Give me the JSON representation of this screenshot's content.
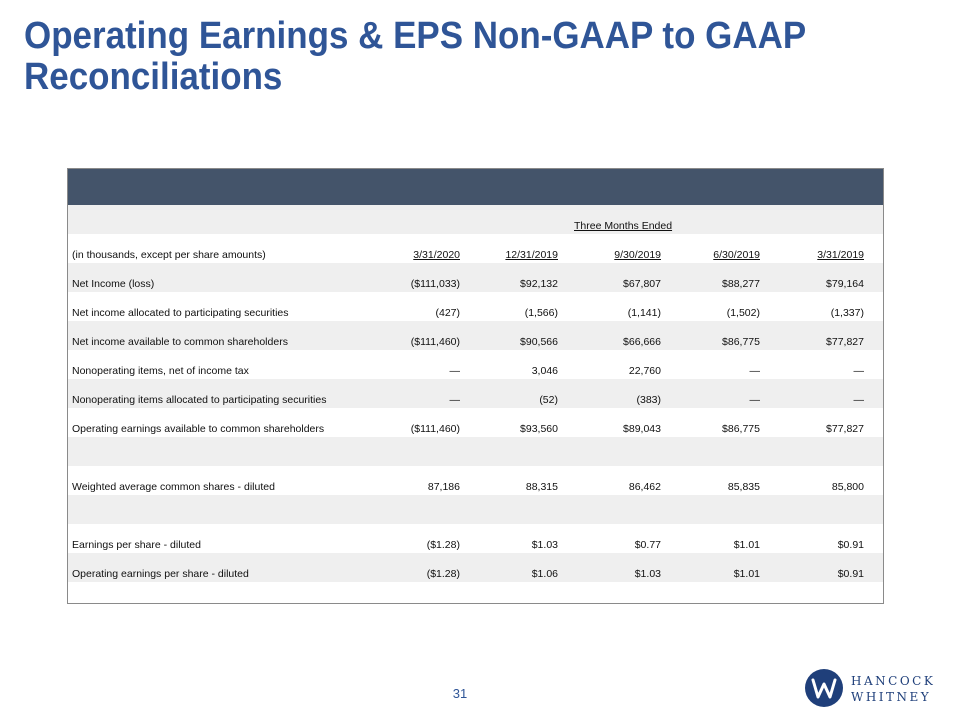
{
  "title": "Operating Earnings & EPS Non-GAAP to GAAP Reconciliations",
  "table": {
    "group_header": "Three Months Ended",
    "label_header": "(in thousands, except per share amounts)",
    "columns": [
      "3/31/2020",
      "12/31/2019",
      "9/30/2019",
      "6/30/2019",
      "3/31/2019"
    ],
    "rows": [
      {
        "label": "Net Income (loss)",
        "values": [
          "($111,033)",
          "$92,132",
          "$67,807",
          "$88,277",
          "$79,164"
        ]
      },
      {
        "label": "Net income allocated to participating securities",
        "values": [
          "(427)",
          "(1,566)",
          "(1,141)",
          "(1,502)",
          "(1,337)"
        ]
      },
      {
        "label": "Net income available to common shareholders",
        "values": [
          "($111,460)",
          "$90,566",
          "$66,666",
          "$86,775",
          "$77,827"
        ]
      },
      {
        "label": "Nonoperating items, net of income tax",
        "values": [
          "—",
          "3,046",
          "22,760",
          "—",
          "—"
        ]
      },
      {
        "label": "Nonoperating items allocated to participating securities",
        "values": [
          "—",
          "(52)",
          "(383)",
          "—",
          "—"
        ]
      },
      {
        "label": "Operating earnings available to common shareholders",
        "values": [
          "($111,460)",
          "$93,560",
          "$89,043",
          "$86,775",
          "$77,827"
        ]
      },
      {
        "label": "Weighted average  common shares - diluted",
        "values": [
          "87,186",
          "88,315",
          "86,462",
          "85,835",
          "85,800"
        ]
      },
      {
        "label": "Earnings per share - diluted",
        "values": [
          "($1.28)",
          "$1.03",
          "$0.77",
          "$1.01",
          "$0.91"
        ]
      },
      {
        "label": "Operating earnings per share - diluted",
        "values": [
          "($1.28)",
          "$1.06",
          "$1.03",
          "$1.01",
          "$0.91"
        ]
      }
    ]
  },
  "page_number": "31",
  "logo": {
    "line1": "HANCOCK",
    "line2": "WHITNEY",
    "icon": "hancock-whitney-logo-icon",
    "color": "#1f3f7a"
  },
  "colors": {
    "title": "#2f5597",
    "table_header_bar": "#44546a",
    "row_shade": "#efefef"
  }
}
